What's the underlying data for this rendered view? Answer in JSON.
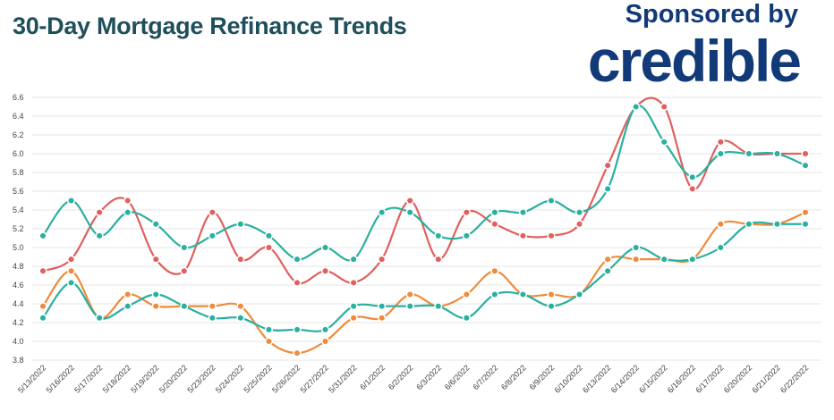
{
  "header": {
    "title": "30-Day Mortgage Refinance Trends",
    "sponsor_label": "Sponsored by",
    "brand_logo": "credible"
  },
  "colors": {
    "red": "#e0605e",
    "teal": "#2ab0a0",
    "orange": "#ef8b3a",
    "title": "#1f4f5a",
    "brand": "#123a78",
    "grid": "#e6e6e6"
  },
  "chart_data": {
    "type": "line",
    "title": "30-Day Mortgage Refinance Trends",
    "xlabel": "",
    "ylabel": "",
    "ylim": [
      3.8,
      6.6
    ],
    "yticks": [
      "6.6",
      "6.4",
      "6.2",
      "6.0",
      "5.8",
      "5.6",
      "5.4",
      "5.2",
      "5.0",
      "4.8",
      "4.6",
      "4.4",
      "4.2",
      "4.0",
      "3.8"
    ],
    "grid": true,
    "legend": "none",
    "categories": [
      "5/13/2022",
      "5/16/2022",
      "5/17/2022",
      "5/18/2022",
      "5/19/2022",
      "5/20/2022",
      "5/23/2022",
      "5/24/2022",
      "5/25/2022",
      "5/26/2022",
      "5/27/2022",
      "5/31/2022",
      "6/1/2022",
      "6/2/2022",
      "6/3/2022",
      "6/6/2022",
      "6/7/2022",
      "6/8/2022",
      "6/9/2022",
      "6/10/2022",
      "6/13/2022",
      "6/14/2022",
      "6/15/2022",
      "6/16/2022",
      "6/17/2022",
      "6/20/2022",
      "6/21/2022",
      "6/22/2022"
    ],
    "series": [
      {
        "color": "red",
        "values": [
          4.75,
          4.875,
          5.375,
          5.5,
          4.875,
          4.75,
          5.375,
          4.875,
          5.0,
          4.625,
          4.75,
          4.625,
          4.875,
          5.5,
          4.875,
          5.375,
          5.25,
          5.125,
          5.125,
          5.25,
          5.875,
          6.5,
          6.5,
          5.625,
          6.125,
          6.0,
          6.0,
          6.0
        ]
      },
      {
        "color": "teal",
        "values": [
          5.125,
          5.5,
          5.125,
          5.375,
          5.25,
          5.0,
          5.125,
          5.25,
          5.125,
          4.875,
          5.0,
          4.875,
          5.375,
          5.375,
          5.125,
          5.125,
          5.375,
          5.375,
          5.5,
          5.375,
          5.625,
          6.5,
          6.125,
          5.75,
          6.0,
          6.0,
          6.0,
          5.875
        ]
      },
      {
        "color": "orange",
        "values": [
          4.375,
          4.75,
          4.25,
          4.5,
          4.375,
          4.375,
          4.375,
          4.375,
          4.0,
          3.875,
          4.0,
          4.25,
          4.25,
          4.5,
          4.375,
          4.5,
          4.75,
          4.5,
          4.5,
          4.5,
          4.875,
          4.875,
          4.875,
          4.875,
          5.25,
          5.25,
          5.25,
          5.375
        ]
      },
      {
        "color": "teal",
        "values": [
          4.25,
          4.625,
          4.25,
          4.375,
          4.5,
          4.375,
          4.25,
          4.25,
          4.125,
          4.125,
          4.125,
          4.375,
          4.375,
          4.375,
          4.375,
          4.25,
          4.5,
          4.5,
          4.375,
          4.5,
          4.75,
          5.0,
          4.875,
          4.875,
          5.0,
          5.25,
          5.25,
          5.25
        ]
      }
    ]
  }
}
